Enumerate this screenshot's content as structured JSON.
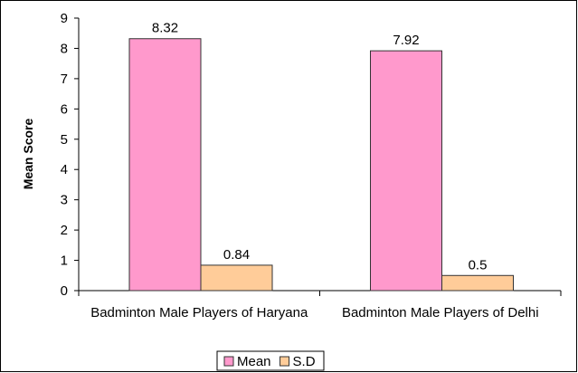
{
  "chart_data": {
    "type": "bar",
    "y_label": "Mean Score",
    "categories": [
      "Badminton Male Players of Haryana",
      "Badminton Male Players of Delhi"
    ],
    "series": [
      {
        "name": "Mean",
        "color": "#ff99cc",
        "values": [
          8.32,
          7.92
        ]
      },
      {
        "name": "S.D",
        "color": "#ffcc99",
        "values": [
          0.84,
          0.5
        ]
      }
    ],
    "ylim": [
      0,
      9
    ],
    "yticks": [
      0,
      1,
      2,
      3,
      4,
      5,
      6,
      7,
      8,
      9
    ],
    "legend": "bottom",
    "data_labels": true
  }
}
